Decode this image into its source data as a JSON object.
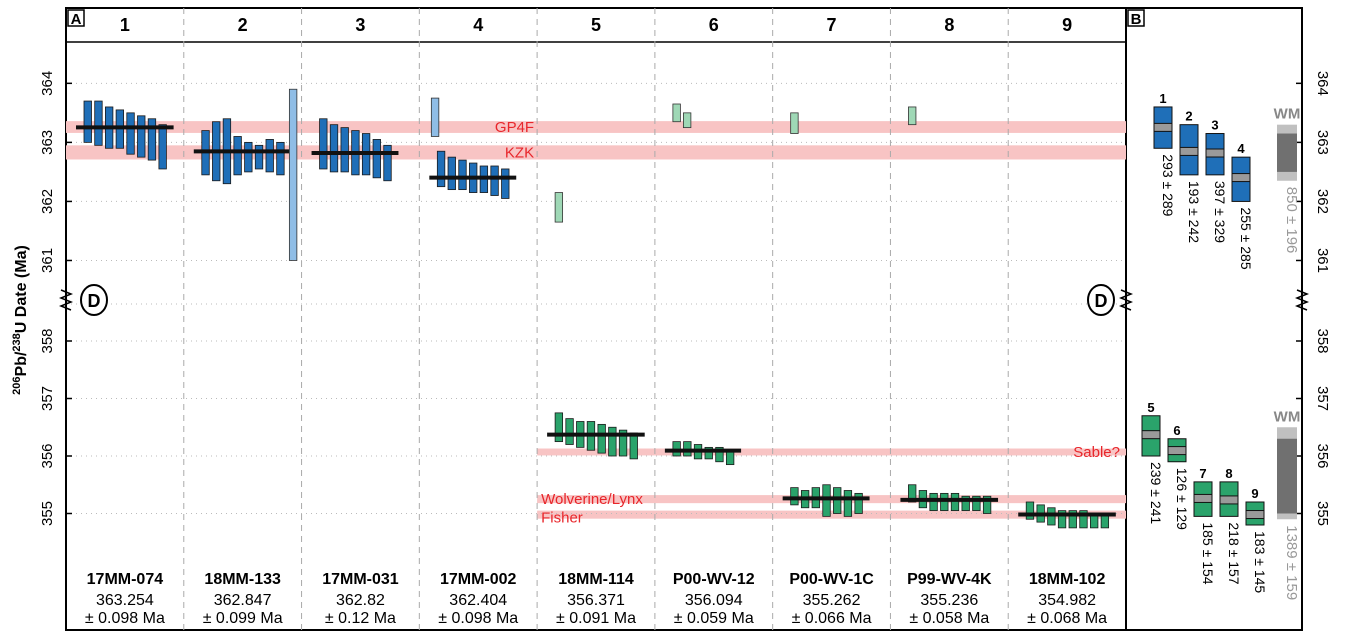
{
  "chart_data": {
    "type": "bar",
    "ylabel_main": "206",
    "ylabel_mid": "Pb/",
    "ylabel_sup2": "238",
    "ylabel_tail": "U Date (Ma)",
    "panel_a_label": "A",
    "panel_b_label": "B",
    "break_label": "D",
    "upper_range": [
      360.5,
      364.7
    ],
    "lower_range": [
      354.4,
      358.4
    ],
    "upper_ticks": [
      361,
      362,
      363,
      364
    ],
    "lower_ticks": [
      355,
      356,
      357,
      358
    ],
    "columns": [
      {
        "num": "1",
        "sample": "17MM-074",
        "age": "363.254",
        "err": "± 0.098 Ma",
        "weighted_mean": 363.254,
        "color": "#1f6fb8",
        "analyses": [
          [
            363.0,
            363.7
          ],
          [
            362.95,
            363.7
          ],
          [
            362.9,
            363.6
          ],
          [
            362.9,
            363.55
          ],
          [
            362.8,
            363.5
          ],
          [
            362.75,
            363.45
          ],
          [
            362.7,
            363.4
          ],
          [
            362.55,
            363.3
          ]
        ]
      },
      {
        "num": "2",
        "sample": "18MM-133",
        "age": "362.847",
        "err": "± 0.099 Ma",
        "weighted_mean": 362.847,
        "color": "#1f6fb8",
        "analyses": [
          [
            362.45,
            363.2
          ],
          [
            362.35,
            363.35
          ],
          [
            362.3,
            363.4
          ],
          [
            362.45,
            363.1
          ],
          [
            362.5,
            363.0
          ],
          [
            362.55,
            362.95
          ],
          [
            362.5,
            363.05
          ],
          [
            362.45,
            363.0
          ],
          [
            361.0,
            363.9,
            "light"
          ]
        ]
      },
      {
        "num": "3",
        "sample": "17MM-031",
        "age": "362.82",
        "err": "± 0.12 Ma",
        "weighted_mean": 362.82,
        "color": "#1f6fb8",
        "analyses": [
          [
            362.55,
            363.4
          ],
          [
            362.5,
            363.3
          ],
          [
            362.5,
            363.25
          ],
          [
            362.45,
            363.2
          ],
          [
            362.45,
            363.15
          ],
          [
            362.4,
            363.05
          ],
          [
            362.35,
            362.95
          ]
        ]
      },
      {
        "num": "4",
        "sample": "17MM-002",
        "age": "362.404",
        "err": "± 0.098 Ma",
        "weighted_mean": 362.404,
        "color": "#1f6fb8",
        "analyses": [
          [
            363.1,
            363.75,
            "light"
          ],
          [
            362.25,
            362.85
          ],
          [
            362.2,
            362.75
          ],
          [
            362.2,
            362.7
          ],
          [
            362.15,
            362.65
          ],
          [
            362.15,
            362.6
          ],
          [
            362.1,
            362.6
          ],
          [
            362.05,
            362.55
          ]
        ]
      },
      {
        "num": "5",
        "sample": "18MM-114",
        "age": "356.371",
        "err": "± 0.091 Ma",
        "weighted_mean": 356.371,
        "color": "#2aa36b",
        "upper_analyses": [
          [
            361.65,
            362.15,
            "light"
          ]
        ],
        "analyses": [
          [
            356.25,
            356.75
          ],
          [
            356.2,
            356.65
          ],
          [
            356.15,
            356.6
          ],
          [
            356.1,
            356.6
          ],
          [
            356.05,
            356.55
          ],
          [
            356.0,
            356.5
          ],
          [
            356.0,
            356.45
          ],
          [
            355.95,
            356.4
          ]
        ]
      },
      {
        "num": "6",
        "sample": "P00-WV-12",
        "age": "356.094",
        "err": "± 0.059 Ma",
        "weighted_mean": 356.094,
        "color": "#2aa36b",
        "upper_analyses": [
          [
            363.35,
            363.65,
            "light"
          ],
          [
            363.25,
            363.5,
            "light"
          ]
        ],
        "analyses": [
          [
            356.0,
            356.25
          ],
          [
            356.0,
            356.25
          ],
          [
            355.95,
            356.2
          ],
          [
            355.95,
            356.15
          ],
          [
            355.9,
            356.15
          ],
          [
            355.85,
            356.1
          ]
        ]
      },
      {
        "num": "7",
        "sample": "P00-WV-1C",
        "age": "355.262",
        "err": "± 0.066 Ma",
        "weighted_mean": 355.262,
        "color": "#2aa36b",
        "upper_analyses": [
          [
            363.15,
            363.5,
            "light"
          ]
        ],
        "analyses": [
          [
            355.15,
            355.45
          ],
          [
            355.1,
            355.4
          ],
          [
            355.1,
            355.45
          ],
          [
            354.95,
            355.5
          ],
          [
            355.0,
            355.45
          ],
          [
            354.95,
            355.4
          ],
          [
            355.0,
            355.35
          ]
        ]
      },
      {
        "num": "8",
        "sample": "P99-WV-4K",
        "age": "355.236",
        "err": "± 0.058 Ma",
        "weighted_mean": 355.236,
        "color": "#2aa36b",
        "upper_analyses": [
          [
            363.3,
            363.6,
            "light"
          ]
        ],
        "analyses": [
          [
            355.2,
            355.5
          ],
          [
            355.1,
            355.4
          ],
          [
            355.05,
            355.35
          ],
          [
            355.05,
            355.35
          ],
          [
            355.05,
            355.35
          ],
          [
            355.05,
            355.3
          ],
          [
            355.05,
            355.3
          ],
          [
            355.0,
            355.3
          ]
        ]
      },
      {
        "num": "9",
        "sample": "18MM-102",
        "age": "354.982",
        "err": "± 0.068 Ma",
        "weighted_mean": 354.982,
        "color": "#2aa36b",
        "analyses": [
          [
            354.9,
            355.2
          ],
          [
            354.85,
            355.15
          ],
          [
            354.8,
            355.1
          ],
          [
            354.75,
            355.05
          ],
          [
            354.75,
            355.05
          ],
          [
            354.75,
            355.05
          ],
          [
            354.75,
            355.0
          ],
          [
            354.75,
            355.0
          ]
        ]
      }
    ],
    "reference_bands": [
      {
        "label": "GP4F",
        "center": 363.26,
        "half": 0.1,
        "panel": "upper"
      },
      {
        "label": "KZK",
        "center": 362.83,
        "half": 0.12,
        "panel": "upper"
      },
      {
        "label": "Sable?",
        "center": 356.07,
        "half": 0.06,
        "panel": "lower"
      },
      {
        "label": "Wolverine/Lynx",
        "center": 355.25,
        "half": 0.07,
        "panel": "lower"
      },
      {
        "label": "Fisher",
        "center": 354.98,
        "half": 0.07,
        "panel": "lower"
      }
    ],
    "panel_b": {
      "wm_label": "WM",
      "upper": [
        {
          "num": "1",
          "center": 363.254,
          "lo": 362.9,
          "hi": 363.6,
          "label": "293 ± 289"
        },
        {
          "num": "2",
          "center": 362.847,
          "lo": 362.45,
          "hi": 363.3,
          "label": "193 ± 242"
        },
        {
          "num": "3",
          "center": 362.82,
          "lo": 362.45,
          "hi": 363.15,
          "label": "397 ± 329"
        },
        {
          "num": "4",
          "center": 362.404,
          "lo": 362.0,
          "hi": 362.75,
          "label": "255 ± 285"
        }
      ],
      "upper_wm": {
        "center": 362.85,
        "lo": 362.35,
        "hi": 363.3,
        "inner_lo": 362.5,
        "inner_hi": 363.15,
        "label": "850 ± 196"
      },
      "lower": [
        {
          "num": "5",
          "center": 356.371,
          "lo": 356.0,
          "hi": 356.7,
          "label": "239 ± 241"
        },
        {
          "num": "6",
          "center": 356.094,
          "lo": 355.9,
          "hi": 356.3,
          "label": "126 ± 129"
        },
        {
          "num": "7",
          "center": 355.262,
          "lo": 354.95,
          "hi": 355.55,
          "label": "185 ± 154"
        },
        {
          "num": "8",
          "center": 355.236,
          "lo": 354.95,
          "hi": 355.55,
          "label": "218 ± 157"
        },
        {
          "num": "9",
          "center": 354.982,
          "lo": 354.8,
          "hi": 355.2,
          "label": "183 ± 145"
        }
      ],
      "lower_wm": {
        "center": 355.6,
        "lo": 354.9,
        "hi": 356.5,
        "inner_lo": 355.0,
        "inner_hi": 356.3,
        "label": "1389 ± 159"
      }
    },
    "colors": {
      "blue": "#1f6fb8",
      "blue_light": "#8fbde6",
      "green": "#2aa36b",
      "green_light": "#9fd8b6",
      "band": "#f8c4c4",
      "band_text": "#e8262b",
      "wm_dark": "#707070",
      "wm_light": "#c0c0c0"
    }
  }
}
